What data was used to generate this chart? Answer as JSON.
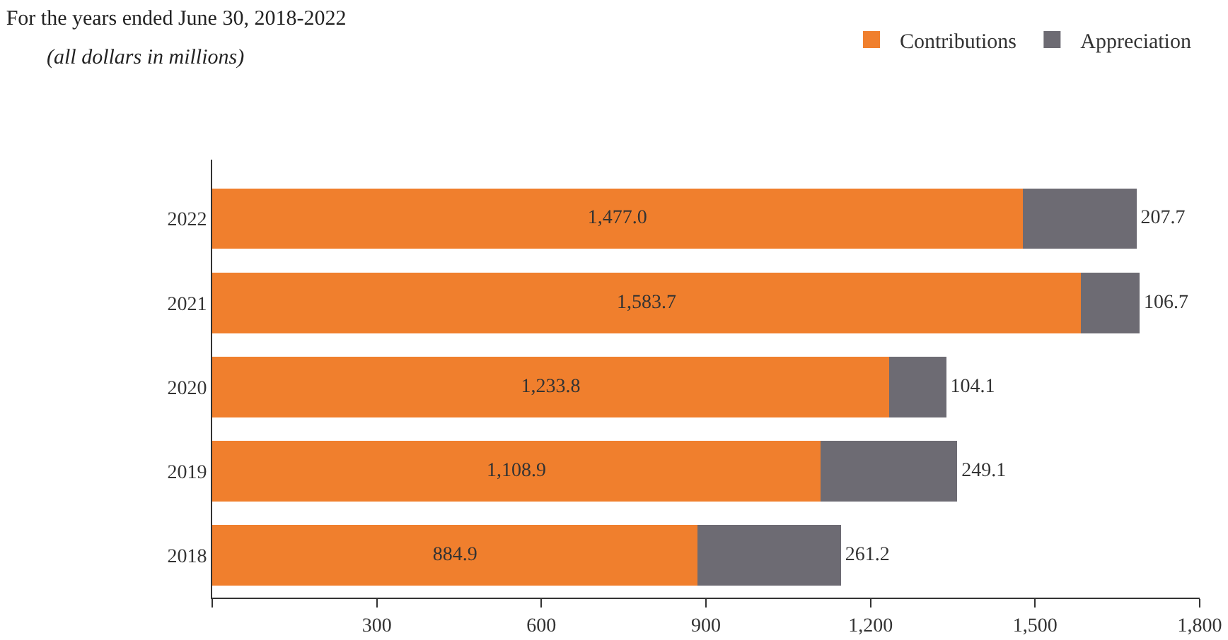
{
  "chart_data": {
    "type": "bar",
    "title": "For the years ended June 30, 2018-2022",
    "subtitle": "(all dollars in millions)",
    "orientation": "horizontal",
    "stacked": true,
    "categories": [
      "2022",
      "2021",
      "2020",
      "2019",
      "2018"
    ],
    "series": [
      {
        "name": "Contributions",
        "color": "#f07f2d",
        "values": [
          1477.0,
          1583.7,
          1233.8,
          1108.9,
          884.9
        ],
        "value_labels": [
          "1,477.0",
          "1,583.7",
          "1,233.8",
          "1,108.9",
          "884.9"
        ]
      },
      {
        "name": "Appreciation",
        "color": "#6d6b73",
        "values": [
          207.7,
          106.7,
          104.1,
          249.1,
          261.2
        ],
        "value_labels": [
          "207.7",
          "106.7",
          "104.1",
          "249.1",
          "261.2"
        ]
      }
    ],
    "xlim": [
      0,
      1800
    ],
    "xticks": [
      {
        "value": 0,
        "label": null
      },
      {
        "value": 300,
        "label": "300"
      },
      {
        "value": 600,
        "label": "600"
      },
      {
        "value": 900,
        "label": "900"
      },
      {
        "value": 1200,
        "label": "1,200"
      },
      {
        "value": 1500,
        "label": "1,500"
      },
      {
        "value": 1800,
        "label": "1,800"
      }
    ],
    "grid": false,
    "legend": "top right"
  }
}
